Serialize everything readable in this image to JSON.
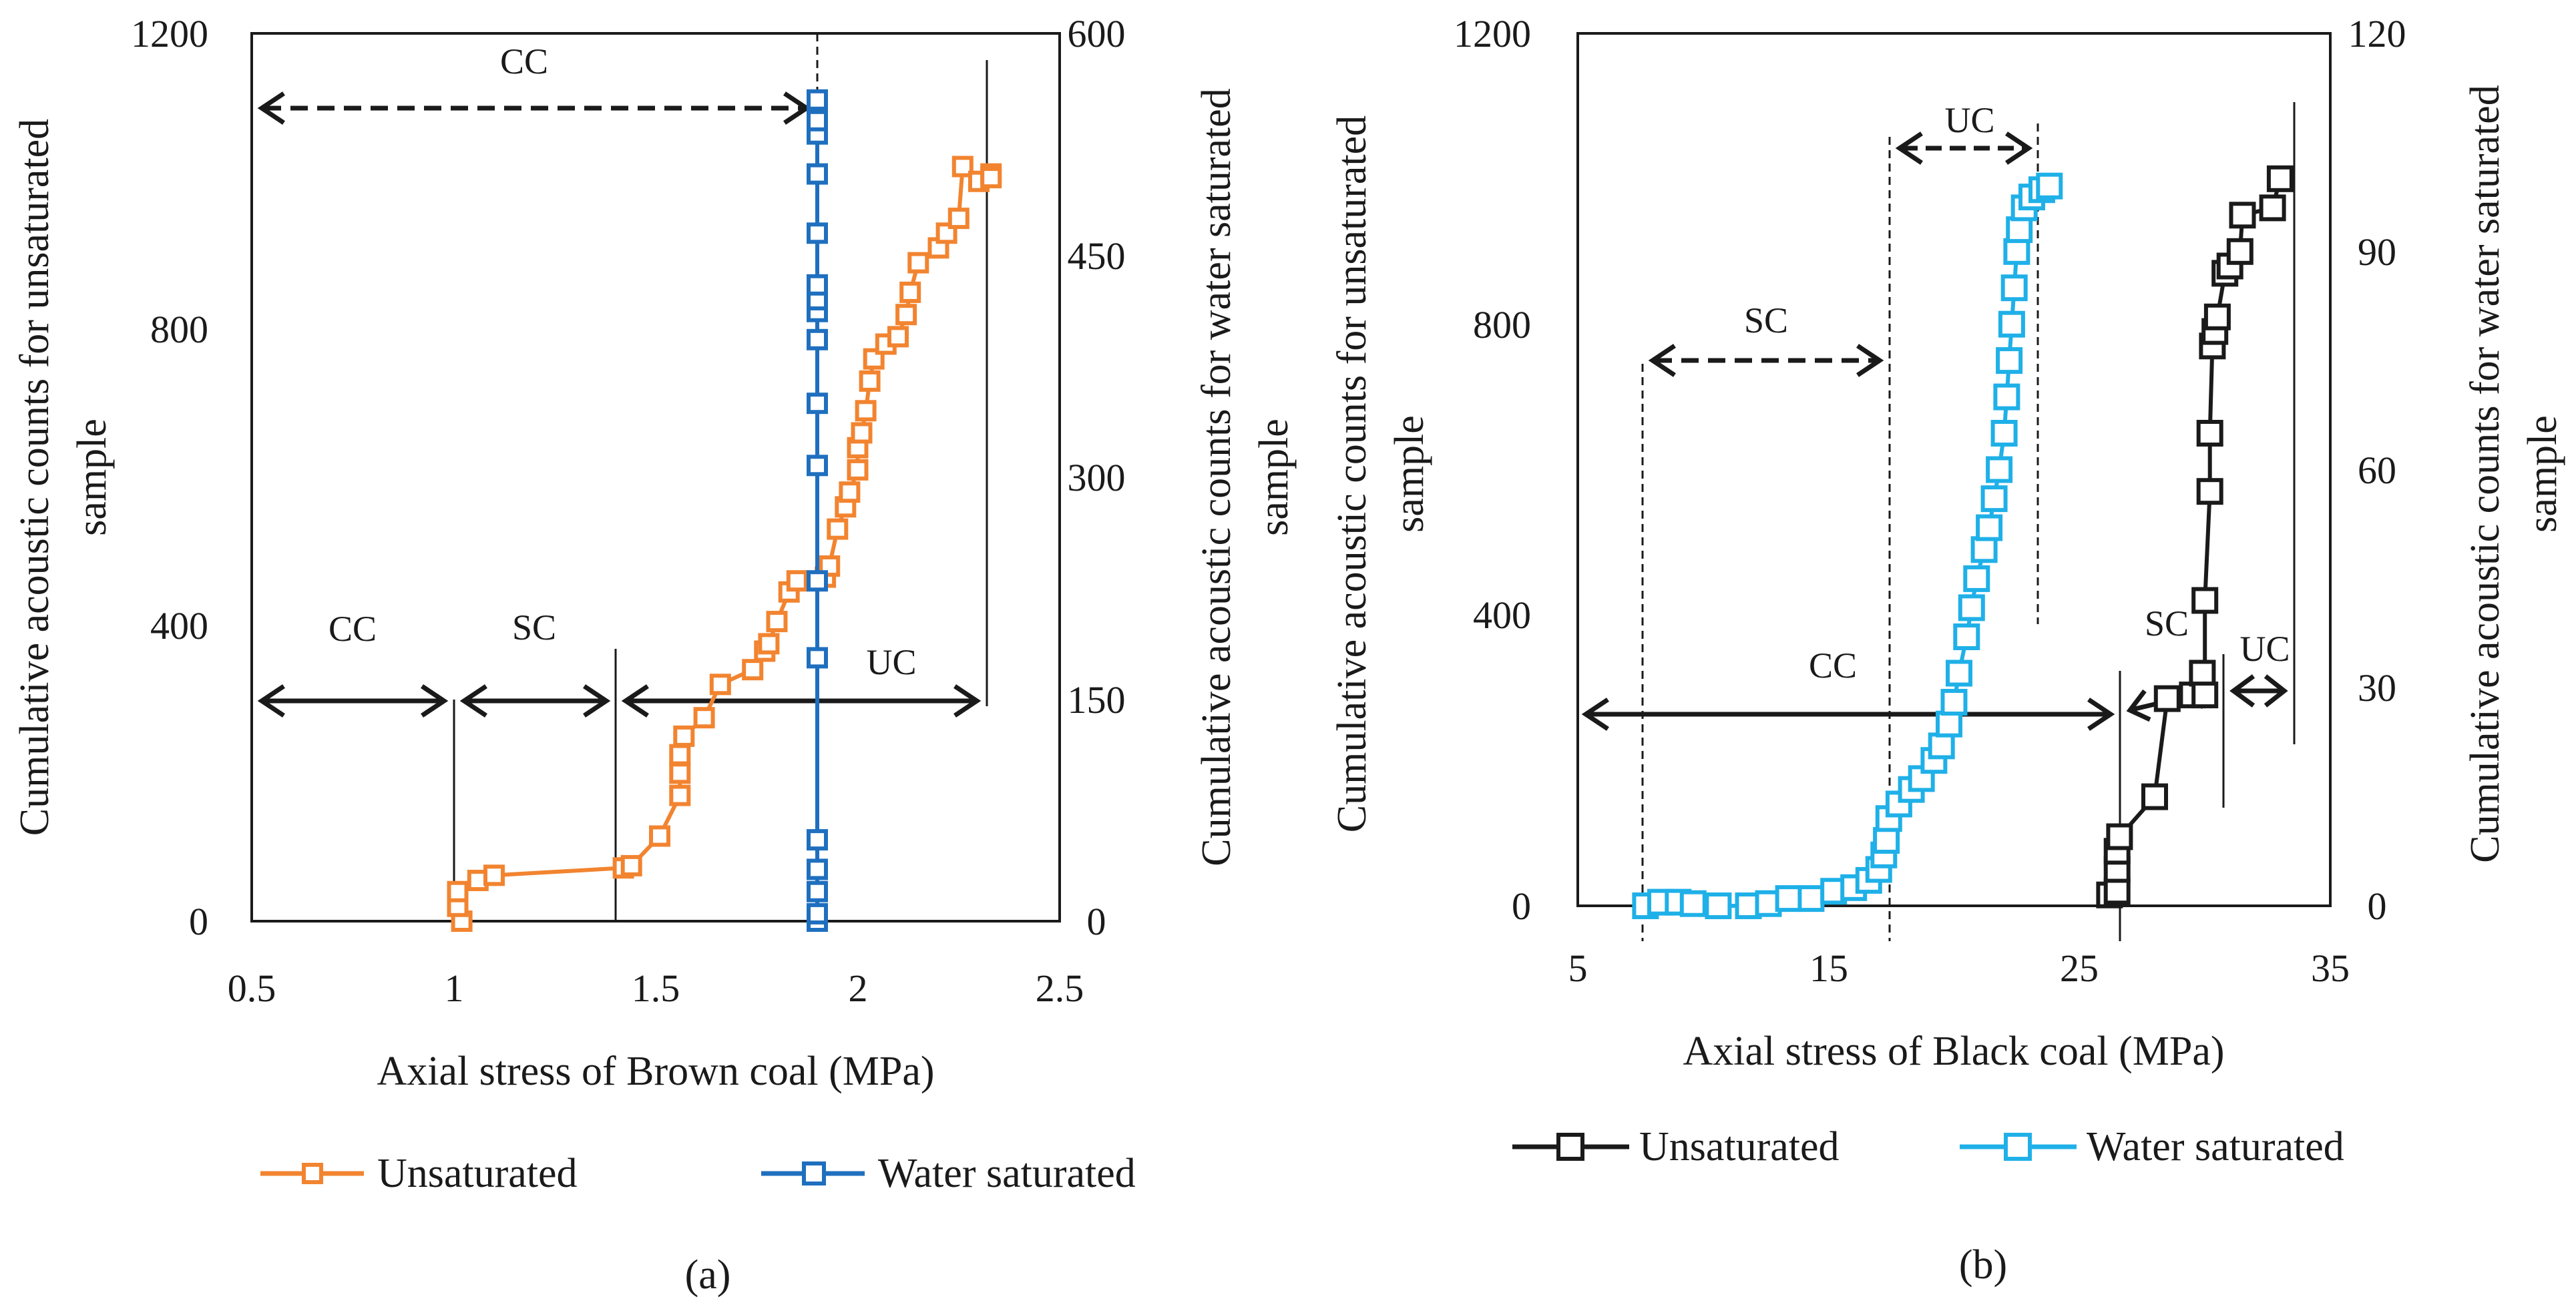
{
  "chart_data": [
    {
      "panel": "a",
      "type": "line",
      "xlabel": "Axial stress of Brown coal (MPa)",
      "xlim": [
        0.5,
        2.5
      ],
      "xticks": [
        0.5,
        1,
        1.5,
        2,
        2.5
      ],
      "xtick_labels": [
        "0.5",
        "1",
        "1.5",
        "2",
        "2.5"
      ],
      "y_left": {
        "label_lines": [
          "Cumulative acoustic counts for unsaturated",
          "sample"
        ],
        "lim": [
          0,
          1200
        ],
        "ticks": [
          0,
          400,
          800,
          1200
        ],
        "tick_labels": [
          "0",
          "400",
          "800",
          "1200"
        ]
      },
      "y_right": {
        "label_lines": [
          "Cumulative acoustic counts for water saturated",
          "sample"
        ],
        "lim": [
          0,
          600
        ],
        "ticks": [
          0,
          150,
          300,
          450,
          600
        ],
        "tick_labels": [
          "0",
          "150",
          "300",
          "450",
          "600"
        ]
      },
      "series": [
        {
          "name": "Unsaturated",
          "color": "#f28430",
          "marker": "square",
          "axis": "left",
          "points": [
            [
              1.02,
              0
            ],
            [
              1.01,
              20
            ],
            [
              1.01,
              40
            ],
            [
              1.06,
              55
            ],
            [
              1.1,
              62
            ],
            [
              1.42,
              72
            ],
            [
              1.44,
              75
            ],
            [
              1.51,
              115
            ],
            [
              1.56,
              170
            ],
            [
              1.56,
              200
            ],
            [
              1.56,
              225
            ],
            [
              1.57,
              250
            ],
            [
              1.62,
              275
            ],
            [
              1.66,
              320
            ],
            [
              1.74,
              340
            ],
            [
              1.77,
              365
            ],
            [
              1.78,
              375
            ],
            [
              1.8,
              405
            ],
            [
              1.83,
              445
            ],
            [
              1.85,
              460
            ],
            [
              1.92,
              465
            ],
            [
              1.93,
              480
            ],
            [
              1.95,
              530
            ],
            [
              1.97,
              560
            ],
            [
              1.98,
              580
            ],
            [
              2.0,
              610
            ],
            [
              2.0,
              640
            ],
            [
              2.01,
              660
            ],
            [
              2.02,
              690
            ],
            [
              2.03,
              730
            ],
            [
              2.04,
              760
            ],
            [
              2.07,
              780
            ],
            [
              2.1,
              790
            ],
            [
              2.12,
              820
            ],
            [
              2.13,
              850
            ],
            [
              2.15,
              890
            ],
            [
              2.2,
              910
            ],
            [
              2.22,
              930
            ],
            [
              2.25,
              950
            ],
            [
              2.26,
              1020
            ],
            [
              2.3,
              1000
            ],
            [
              2.33,
              1010
            ],
            [
              2.33,
              1005
            ]
          ]
        },
        {
          "name": "Water saturated",
          "color": "#1f6fbf",
          "marker": "square",
          "axis": "right",
          "points": [
            [
              1.9,
              0
            ],
            [
              1.9,
              5
            ],
            [
              1.9,
              20
            ],
            [
              1.9,
              35
            ],
            [
              1.9,
              55
            ],
            [
              1.9,
              178
            ],
            [
              1.9,
              230
            ],
            [
              1.9,
              308
            ],
            [
              1.9,
              350
            ],
            [
              1.9,
              393
            ],
            [
              1.9,
              412
            ],
            [
              1.9,
              420
            ],
            [
              1.9,
              430
            ],
            [
              1.9,
              465
            ],
            [
              1.9,
              505
            ],
            [
              1.9,
              532
            ],
            [
              1.9,
              541
            ],
            [
              1.9,
              555
            ]
          ]
        }
      ],
      "annotations": [
        {
          "text": "CC",
          "x": 0.82,
          "y": 1130
        },
        {
          "text": "CC",
          "x": 0.77,
          "y": 400
        },
        {
          "text": "SC",
          "x": 1.2,
          "y": 400
        },
        {
          "text": "UC",
          "x": 2.1,
          "y": 355
        }
      ],
      "legend_position": "bottom",
      "panel_label": "(a)"
    },
    {
      "panel": "b",
      "type": "line",
      "xlabel": "Axial stress of Black coal (MPa)",
      "xlim": [
        5,
        35
      ],
      "xticks": [
        5,
        15,
        25,
        35
      ],
      "xtick_labels": [
        "5",
        "15",
        "25",
        "35"
      ],
      "y_left": {
        "label_lines": [
          "Cumulative acoustic counts for unsaturated",
          "sample"
        ],
        "lim": [
          0,
          1200
        ],
        "ticks": [
          0,
          400,
          800,
          1200
        ],
        "tick_labels": [
          "0",
          "400",
          "800",
          "1200"
        ]
      },
      "y_right": {
        "label_lines": [
          "Cumulative acoustic counts for water saturated",
          "sample"
        ],
        "lim": [
          0,
          120
        ],
        "ticks": [
          0,
          30,
          60,
          90,
          120
        ],
        "tick_labels": [
          "0",
          "30",
          "60",
          "90",
          "120"
        ]
      },
      "series": [
        {
          "name": "Unsaturated",
          "color": "#1a1a1a",
          "marker": "square",
          "axis": "left",
          "points": [
            [
              26.2,
              15
            ],
            [
              26.5,
              20
            ],
            [
              26.5,
              50
            ],
            [
              26.5,
              75
            ],
            [
              26.6,
              95
            ],
            [
              28.0,
              150
            ],
            [
              28.5,
              285
            ],
            [
              29.5,
              290
            ],
            [
              29.9,
              320
            ],
            [
              30.0,
              290
            ],
            [
              30.0,
              420
            ],
            [
              30.2,
              570
            ],
            [
              30.2,
              650
            ],
            [
              30.3,
              770
            ],
            [
              30.4,
              790
            ],
            [
              30.5,
              810
            ],
            [
              30.8,
              870
            ],
            [
              31.0,
              880
            ],
            [
              31.4,
              900
            ],
            [
              31.5,
              950
            ],
            [
              32.7,
              960
            ],
            [
              33.0,
              1000
            ]
          ]
        },
        {
          "name": "Water saturated",
          "color": "#1fb0e8",
          "marker": "square",
          "axis": "right",
          "points": [
            [
              7.7,
              0
            ],
            [
              8.3,
              0.5
            ],
            [
              9.0,
              0.5
            ],
            [
              9.6,
              0.3
            ],
            [
              10.6,
              0
            ],
            [
              11.8,
              0
            ],
            [
              12.6,
              0.3
            ],
            [
              13.4,
              1
            ],
            [
              14.3,
              1
            ],
            [
              15.2,
              2
            ],
            [
              16.0,
              2.5
            ],
            [
              16.6,
              3.5
            ],
            [
              17.0,
              5
            ],
            [
              17.2,
              7
            ],
            [
              17.3,
              9
            ],
            [
              17.4,
              12
            ],
            [
              17.8,
              14
            ],
            [
              18.3,
              16
            ],
            [
              18.7,
              17.5
            ],
            [
              19.2,
              20
            ],
            [
              19.5,
              22
            ],
            [
              19.8,
              25
            ],
            [
              20.0,
              28
            ],
            [
              20.2,
              32
            ],
            [
              20.5,
              37
            ],
            [
              20.7,
              41
            ],
            [
              20.9,
              45
            ],
            [
              21.2,
              49
            ],
            [
              21.4,
              52
            ],
            [
              21.6,
              56
            ],
            [
              21.8,
              60
            ],
            [
              22.0,
              65
            ],
            [
              22.1,
              70
            ],
            [
              22.2,
              75
            ],
            [
              22.3,
              80
            ],
            [
              22.4,
              85
            ],
            [
              22.5,
              90
            ],
            [
              22.6,
              93
            ],
            [
              22.8,
              96
            ],
            [
              23.1,
              97.5
            ],
            [
              23.5,
              98.5
            ],
            [
              23.8,
              99
            ]
          ]
        }
      ],
      "annotations": [
        {
          "text": "UC",
          "x": 21.5,
          "y": 1125
        },
        {
          "text": "SC",
          "x": 12.6,
          "y": 785
        },
        {
          "text": "CC",
          "x": 11.5,
          "y": 315
        },
        {
          "text": "SC",
          "x": 28.2,
          "y": 380
        },
        {
          "text": "UC",
          "x": 31.8,
          "y": 355
        }
      ],
      "legend_position": "bottom",
      "panel_label": "(b)"
    }
  ]
}
